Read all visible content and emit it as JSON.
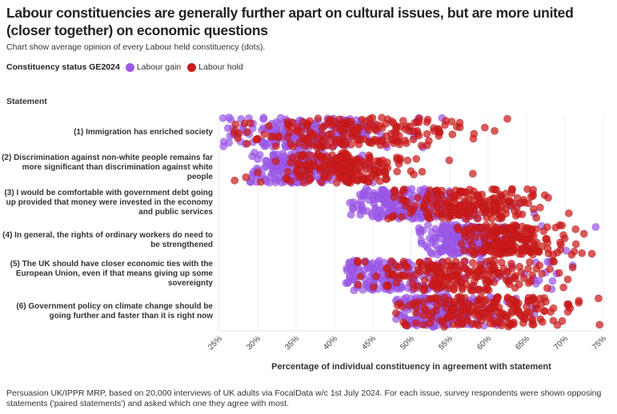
{
  "title": "Labour constituencies are generally further apart on cultural issues, but are more united (closer together) on economic questions",
  "subtitle": "Chart show average opinion of every Labour held constituency (dots).",
  "legend": {
    "title": "Constituency status GE2024",
    "items": [
      {
        "label": "Labour gain",
        "color": "#9d59e8"
      },
      {
        "label": "Labour hold",
        "color": "#cc1a1a"
      }
    ]
  },
  "footer": "Persuasion UK/IPPR MRP, based on 20,000 interviews of UK adults via FocalData w/c 1st July 2024. For each issue, survey respondents were shown opposing statements ('paired statements') and asked which one they agree with most.",
  "chart_data": {
    "type": "scatter",
    "subtype": "strip / jittered dot plot",
    "title": "Labour constituencies are generally further apart on cultural issues, but are more united (closer together) on economic questions",
    "ylabel": "Statement",
    "xlabel": "Percentage of individual constituency in agreement with statement",
    "xlim": [
      25,
      75
    ],
    "x_ticks": [
      "25%",
      "30%",
      "35%",
      "40%",
      "45%",
      "50%",
      "55%",
      "60%",
      "65%",
      "70%",
      "75%"
    ],
    "x_tick_values": [
      25,
      30,
      35,
      40,
      45,
      50,
      55,
      60,
      65,
      70,
      75
    ],
    "grid": "vertical",
    "legend_placement": "top-left",
    "categories": [
      "(1) Immigration has enriched society",
      "(2) Discrimination against non-white people remains far more significant than discrimination against white people",
      "(3) I would be comfortable with government debt going up provided that money were invested in the economy and public services",
      "(4) In general, the rights of ordinary workers do need to be strengthened",
      "(5) The UK should have closer economic ties with the European Union, even if that means giving up some sovereignty",
      "(6) Government policy on climate change should be going further and faster than it is right now"
    ],
    "series": [
      {
        "name": "Labour gain",
        "color": "#9d59e8",
        "distributions": [
          {
            "min": 25.5,
            "max": 54,
            "center": 36,
            "spread": 6.0,
            "count": 190
          },
          {
            "min": 29,
            "max": 45,
            "center": 35,
            "spread": 3.5,
            "count": 190
          },
          {
            "min": 42,
            "max": 66,
            "center": 49,
            "spread": 3.5,
            "count": 190
          },
          {
            "min": 51,
            "max": 74,
            "center": 56.5,
            "spread": 3.0,
            "count": 190
          },
          {
            "min": 41.5,
            "max": 71,
            "center": 46,
            "spread": 5.5,
            "count": 190
          },
          {
            "min": 48,
            "max": 66,
            "center": 53,
            "spread": 3.5,
            "count": 190
          }
        ]
      },
      {
        "name": "Labour hold",
        "color": "#cc1a1a",
        "distributions": [
          {
            "min": 27,
            "max": 62.5,
            "center": 43,
            "spread": 8.0,
            "count": 200
          },
          {
            "min": 27,
            "max": 58,
            "center": 41,
            "spread": 4.5,
            "count": 200
          },
          {
            "min": 47,
            "max": 70.5,
            "center": 57,
            "spread": 4.5,
            "count": 200
          },
          {
            "min": 56,
            "max": 73.5,
            "center": 63,
            "spread": 3.5,
            "count": 200
          },
          {
            "min": 43,
            "max": 71,
            "center": 56,
            "spread": 6.0,
            "count": 200
          },
          {
            "min": 48,
            "max": 74.5,
            "center": 59,
            "spread": 6.0,
            "count": 200
          }
        ]
      }
    ]
  }
}
